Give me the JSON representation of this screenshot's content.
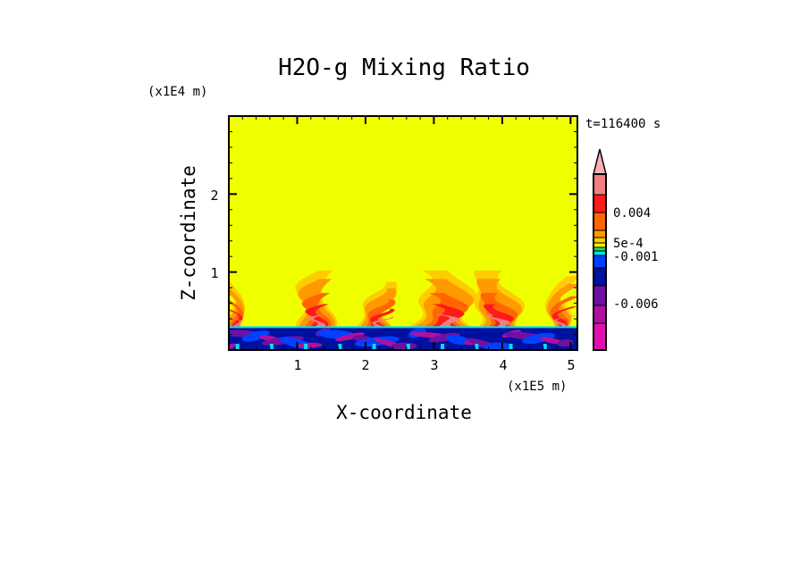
{
  "chart_data": {
    "type": "heatmap",
    "title": "H2O-g Mixing Ratio",
    "xlabel": "X-coordinate",
    "ylabel": "Z-coordinate",
    "x_scale_label": "(x1E5 m)",
    "y_scale_label": "(x1E4 m)",
    "time_label": "t=116400 s",
    "xlim": [
      0,
      5.1
    ],
    "ylim": [
      0,
      3.0
    ],
    "x_ticks": [
      "1",
      "2",
      "3",
      "4",
      "5"
    ],
    "y_ticks": [
      "1",
      "2"
    ],
    "grid": false,
    "colorbar": {
      "labels": [
        "0.004",
        "5e-4",
        "-0.001",
        "-0.006"
      ],
      "colors": [
        "#f08080",
        "#ff1a1a",
        "#ff6600",
        "#ff9900",
        "#ffcc00",
        "#f0f000",
        "#20e060",
        "#00e0ff",
        "#0040ff",
        "#0010a0",
        "#7010a0",
        "#b010a0",
        "#e010b0"
      ],
      "extend_top_color": "#ffb0b0",
      "background_color": "#f0ff00"
    }
  }
}
